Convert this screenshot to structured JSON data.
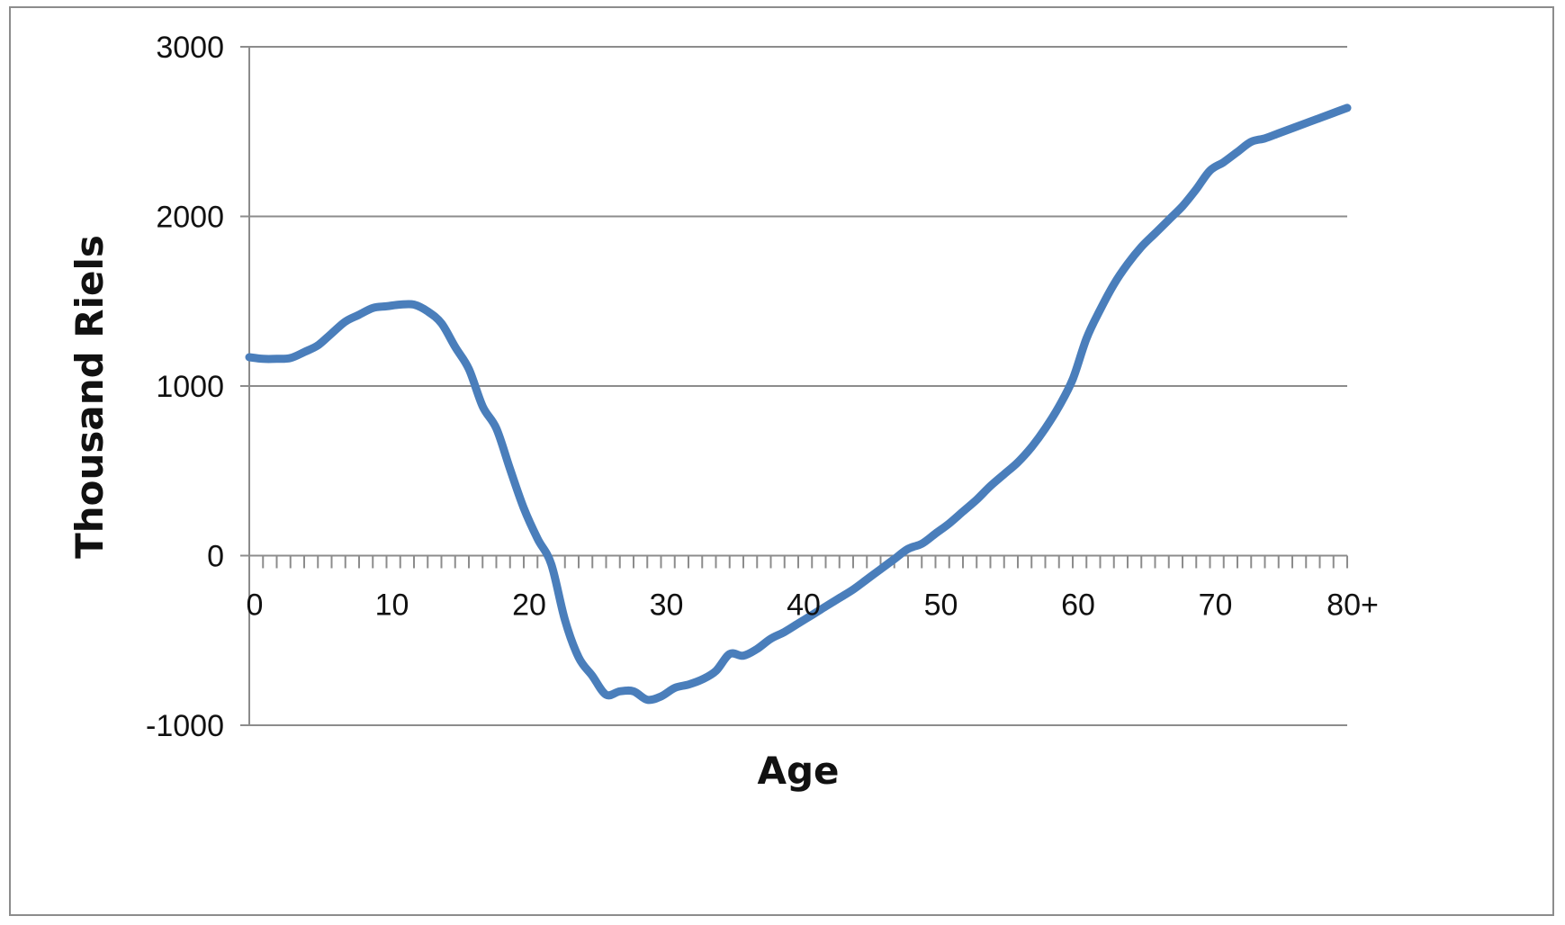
{
  "chart_data": {
    "type": "line",
    "title": "",
    "xlabel": "Age",
    "ylabel": "Thousand Riels",
    "xlim": [
      0,
      80
    ],
    "ylim": [
      -1000,
      3000
    ],
    "x_ticks": [
      0,
      10,
      20,
      30,
      40,
      50,
      60,
      70,
      80
    ],
    "x_tick_labels": [
      "0",
      "10",
      "20",
      "30",
      "40",
      "50",
      "60",
      "70",
      "80+"
    ],
    "y_ticks": [
      3000,
      2000,
      1000,
      0,
      -1000
    ],
    "y_tick_labels": [
      "3000",
      "2000",
      "1000",
      "0",
      "-1000"
    ],
    "grid": true,
    "legend": "none",
    "colors": {
      "line": "#4a7ebb",
      "grid": "#8c8c8c",
      "axis": "#8c8c8c"
    },
    "series": [
      {
        "x": [
          0,
          1,
          2,
          3,
          4,
          5,
          6,
          7,
          8,
          9,
          10,
          11,
          12,
          13,
          14,
          15,
          16,
          17,
          18,
          19,
          20,
          21,
          22,
          23,
          24,
          25,
          26,
          27,
          28,
          29,
          30,
          31,
          32,
          33,
          34,
          35,
          36,
          37,
          38,
          39,
          40,
          41,
          42,
          43,
          44,
          45,
          46,
          47,
          48,
          49,
          50,
          51,
          52,
          53,
          54,
          55,
          56,
          57,
          58,
          59,
          60,
          61,
          62,
          63,
          64,
          65,
          66,
          67,
          68,
          69,
          70,
          71,
          72,
          73,
          74,
          75,
          76,
          77,
          78,
          79,
          80
        ],
        "values": [
          1170,
          1160,
          1160,
          1165,
          1200,
          1240,
          1310,
          1380,
          1420,
          1460,
          1470,
          1480,
          1480,
          1440,
          1370,
          1230,
          1100,
          880,
          750,
          510,
          280,
          100,
          -50,
          -380,
          -600,
          -710,
          -820,
          -800,
          -800,
          -850,
          -830,
          -780,
          -760,
          -730,
          -680,
          -580,
          -590,
          -550,
          -490,
          -450,
          -400,
          -350,
          -300,
          -250,
          -200,
          -140,
          -80,
          -20,
          40,
          70,
          130,
          190,
          260,
          330,
          410,
          480,
          550,
          640,
          750,
          880,
          1040,
          1280,
          1450,
          1600,
          1720,
          1820,
          1900,
          1980,
          2060,
          2160,
          2270,
          2320,
          2380,
          2440,
          2460,
          2490,
          2520,
          2550,
          2580,
          2610,
          2640
        ]
      }
    ]
  }
}
